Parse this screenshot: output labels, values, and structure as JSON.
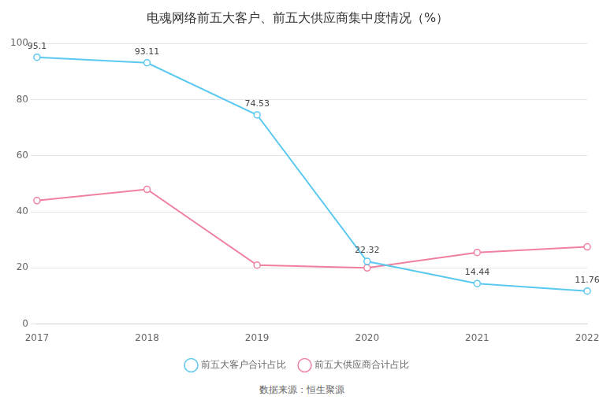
{
  "chart_data": {
    "type": "line",
    "title": "电魂网络前五大客户、前五大供应商集中度情况（%）",
    "annotations": [
      "数据来源：恒生聚源"
    ],
    "categories": [
      "2017",
      "2018",
      "2019",
      "2020",
      "2021",
      "2022"
    ],
    "series": [
      {
        "name": "前五大客户合计占比",
        "color": "#5bc8f0",
        "marker": "circle",
        "data_labels": true,
        "values": [
          95.1,
          93.11,
          74.53,
          22.32,
          14.44,
          11.76
        ]
      },
      {
        "name": "前五大供应商合计占比",
        "color": "#f080a0",
        "marker": "circle",
        "values": [
          44.0,
          48.0,
          21.0,
          20.0,
          25.5,
          27.5
        ]
      }
    ],
    "ylim": [
      0,
      100
    ],
    "yticks": [
      0,
      20,
      40,
      60,
      80,
      100
    ],
    "grid": true,
    "legend": "bottom"
  }
}
